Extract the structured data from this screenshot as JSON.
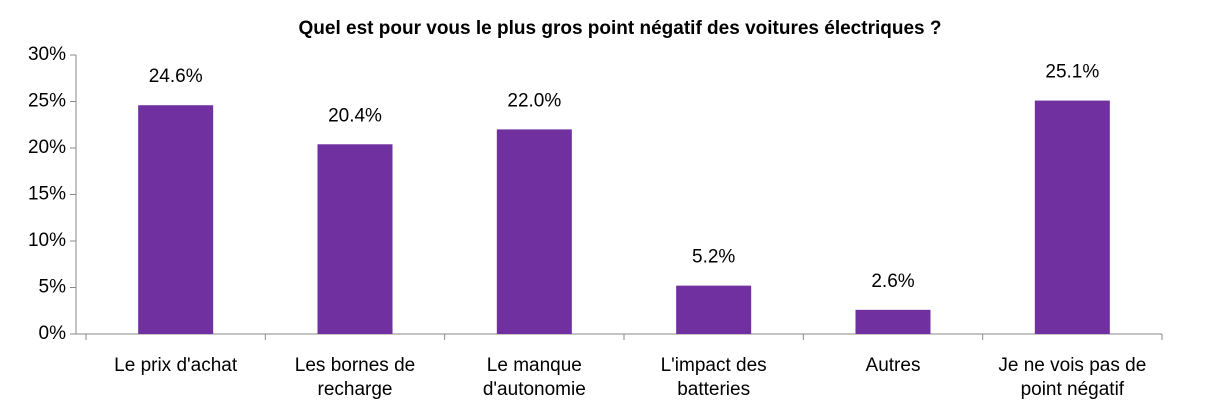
{
  "chart_data": {
    "type": "bar",
    "title": "Quel est pour vous le plus gros point négatif des voitures électriques ?",
    "categories": [
      "Le prix d'achat",
      "Les bornes de recharge",
      "Le manque d'autonomie",
      "L'impact des batteries",
      "Autres",
      "Je ne vois pas de point négatif"
    ],
    "values": [
      24.6,
      20.4,
      22.0,
      5.2,
      2.6,
      25.1
    ],
    "value_labels": [
      "24.6%",
      "20.4%",
      "22.0%",
      "5.2%",
      "2.6%",
      "25.1%"
    ],
    "color": "#7030a0",
    "ylim": [
      0,
      30
    ],
    "yticks": [
      {
        "value": 0,
        "label": "0%"
      },
      {
        "value": 5,
        "label": "5%"
      },
      {
        "value": 10,
        "label": "10%"
      },
      {
        "value": 15,
        "label": "15%"
      },
      {
        "value": 20,
        "label": "20%"
      },
      {
        "value": 25,
        "label": "25%"
      },
      {
        "value": 30,
        "label": "30%"
      }
    ],
    "grid": false
  }
}
